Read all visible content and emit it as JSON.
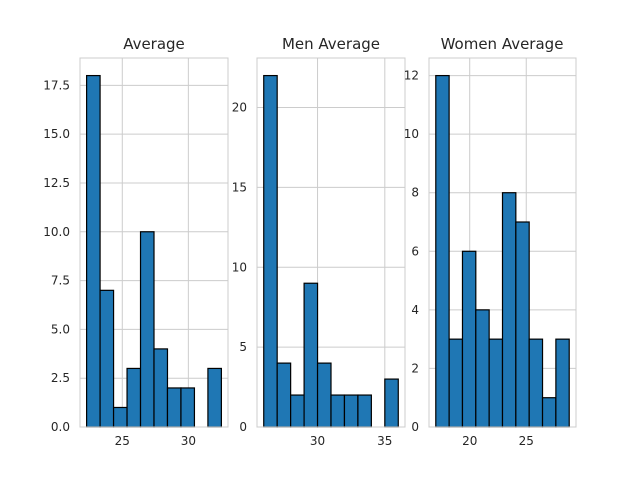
{
  "colors": {
    "bar": "#1f77b4",
    "edge": "#000000",
    "grid": "#cccccc",
    "background": "#ffffff"
  },
  "chart_data": [
    {
      "type": "bar",
      "title": "Average",
      "xlabel": "",
      "ylabel": "",
      "grid": true,
      "bins": [
        {
          "x0": 22.3,
          "x1": 23.32,
          "count": 18
        },
        {
          "x0": 23.32,
          "x1": 24.34,
          "count": 7
        },
        {
          "x0": 24.34,
          "x1": 25.36,
          "count": 1
        },
        {
          "x0": 25.36,
          "x1": 26.38,
          "count": 3
        },
        {
          "x0": 26.38,
          "x1": 27.4,
          "count": 10
        },
        {
          "x0": 27.4,
          "x1": 28.42,
          "count": 4
        },
        {
          "x0": 28.42,
          "x1": 29.44,
          "count": 2
        },
        {
          "x0": 29.44,
          "x1": 30.46,
          "count": 2
        },
        {
          "x0": 30.46,
          "x1": 31.48,
          "count": 0
        },
        {
          "x0": 31.48,
          "x1": 32.5,
          "count": 3
        }
      ],
      "xlim": [
        21.8,
        33.0
      ],
      "ylim": [
        0,
        18.9
      ],
      "xticks": [
        25,
        30
      ],
      "xtick_labels": [
        "25",
        "30"
      ],
      "yticks": [
        0,
        2.5,
        5,
        7.5,
        10,
        12.5,
        15,
        17.5
      ],
      "ytick_labels": [
        "0.0",
        "2.5",
        "5.0",
        "7.5",
        "10.0",
        "12.5",
        "15.0",
        "17.5"
      ]
    },
    {
      "type": "bar",
      "title": "Men Average",
      "xlabel": "",
      "ylabel": "",
      "grid": true,
      "bins": [
        {
          "x0": 26.0,
          "x1": 27.0,
          "count": 22
        },
        {
          "x0": 27.0,
          "x1": 28.0,
          "count": 4
        },
        {
          "x0": 28.0,
          "x1": 29.0,
          "count": 2
        },
        {
          "x0": 29.0,
          "x1": 30.0,
          "count": 9
        },
        {
          "x0": 30.0,
          "x1": 31.0,
          "count": 4
        },
        {
          "x0": 31.0,
          "x1": 32.0,
          "count": 2
        },
        {
          "x0": 32.0,
          "x1": 33.0,
          "count": 2
        },
        {
          "x0": 33.0,
          "x1": 34.0,
          "count": 2
        },
        {
          "x0": 34.0,
          "x1": 35.0,
          "count": 0
        },
        {
          "x0": 35.0,
          "x1": 36.0,
          "count": 3
        }
      ],
      "xlim": [
        25.5,
        36.5
      ],
      "ylim": [
        0,
        23.1
      ],
      "xticks": [
        30,
        35
      ],
      "xtick_labels": [
        "30",
        "35"
      ],
      "yticks": [
        0,
        5,
        10,
        15,
        20
      ],
      "ytick_labels": [
        "0",
        "5",
        "10",
        "15",
        "20"
      ]
    },
    {
      "type": "bar",
      "title": "Women Average",
      "xlabel": "",
      "ylabel": "",
      "grid": true,
      "bins": [
        {
          "x0": 17.0,
          "x1": 18.18,
          "count": 12
        },
        {
          "x0": 18.18,
          "x1": 19.36,
          "count": 3
        },
        {
          "x0": 19.36,
          "x1": 20.54,
          "count": 6
        },
        {
          "x0": 20.54,
          "x1": 21.72,
          "count": 4
        },
        {
          "x0": 21.72,
          "x1": 22.9,
          "count": 3
        },
        {
          "x0": 22.9,
          "x1": 24.08,
          "count": 8
        },
        {
          "x0": 24.08,
          "x1": 25.26,
          "count": 7
        },
        {
          "x0": 25.26,
          "x1": 26.44,
          "count": 3
        },
        {
          "x0": 26.44,
          "x1": 27.62,
          "count": 1
        },
        {
          "x0": 27.62,
          "x1": 28.8,
          "count": 3
        }
      ],
      "xlim": [
        16.4,
        29.4
      ],
      "ylim": [
        0,
        12.6
      ],
      "xticks": [
        20,
        25
      ],
      "xtick_labels": [
        "20",
        "25"
      ],
      "yticks": [
        0,
        2,
        4,
        6,
        8,
        10,
        12
      ],
      "ytick_labels": [
        "0",
        "2",
        "4",
        "6",
        "8",
        "10",
        "12"
      ]
    }
  ]
}
